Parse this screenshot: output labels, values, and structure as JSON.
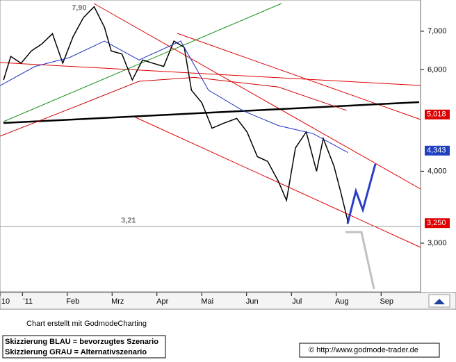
{
  "chart_data": {
    "type": "line",
    "log_scale": true,
    "xlim": [
      0.5,
      9.88
    ],
    "ylim": [
      2.47,
      7.93
    ],
    "xticks": [
      {
        "value": 0.5,
        "label": "10"
      },
      {
        "value": 1,
        "label": "'11"
      },
      {
        "value": 2,
        "label": "Feb"
      },
      {
        "value": 3,
        "label": "Mrz"
      },
      {
        "value": 4,
        "label": "Apr"
      },
      {
        "value": 5,
        "label": "Mai"
      },
      {
        "value": 6,
        "label": "Jun"
      },
      {
        "value": 7,
        "label": "Jul"
      },
      {
        "value": 8,
        "label": "Aug"
      },
      {
        "value": 9,
        "label": "Sep"
      }
    ],
    "yticks": [
      {
        "value": 7,
        "label": "7,000"
      },
      {
        "value": 6,
        "label": "6,000"
      },
      {
        "value": 4,
        "label": "4,000"
      },
      {
        "value": 3,
        "label": "3,000"
      }
    ],
    "series": [
      {
        "color": "#000000",
        "x": [
          0.58,
          0.74,
          0.97,
          1.2,
          1.43,
          1.67,
          1.9,
          2.13,
          2.36,
          2.6,
          2.83,
          2.98,
          3.22,
          3.45,
          3.68,
          3.91,
          4.15,
          4.38,
          4.61,
          4.77,
          5.0,
          5.23,
          5.47,
          5.78,
          6.01,
          6.24,
          6.47,
          6.71,
          6.89,
          7.09,
          7.33,
          7.56,
          7.71,
          7.95,
          8.1,
          8.26
        ],
        "values": [
          5.76,
          6.33,
          6.16,
          6.47,
          6.65,
          6.93,
          6.16,
          6.85,
          7.39,
          7.72,
          7.11,
          6.47,
          6.39,
          5.76,
          6.24,
          6.16,
          6.08,
          6.73,
          6.56,
          5.53,
          5.26,
          4.75,
          4.84,
          4.94,
          4.68,
          4.24,
          4.16,
          3.84,
          3.56,
          4.39,
          4.68,
          4.0,
          4.56,
          4.08,
          3.68,
          3.27
        ]
      },
      {
        "color": "#2030c0",
        "x": [
          0.5,
          1.28,
          2.05,
          2.83,
          3.6,
          4.53,
          5.15,
          5.93,
          6.71,
          7.48,
          8.26
        ],
        "values": [
          5.63,
          6.08,
          6.3,
          6.73,
          6.24,
          6.73,
          5.53,
          5.09,
          4.8,
          4.65,
          4.31
        ]
      },
      {
        "color": "#cc0000",
        "x": [
          0.5,
          2.05,
          3.6,
          4.84,
          6.71,
          8.23
        ],
        "values": [
          4.6,
          5.13,
          5.73,
          5.82,
          5.6,
          5.1
        ]
      }
    ],
    "price_labels": [
      {
        "value": 5.018,
        "label": "5,018",
        "color": "#e00000"
      },
      {
        "value": 4.343,
        "label": "4,343",
        "color": "#2040c0"
      },
      {
        "value": 3.25,
        "label": "3,250",
        "color": "#e00000"
      }
    ],
    "annotations": [
      {
        "value": 7.9,
        "label": "7,90",
        "x": 2.1
      },
      {
        "value": 3.21,
        "label": "3,21",
        "x": 3.2
      }
    ],
    "credit": "Chart erstellt mit GodmodeCharting",
    "notes": [
      "Skizzierung BLAU = bevorzugtes Szenario",
      "Skizzierung GRAU = Alternativszenario"
    ],
    "source": "© http://www.godmode-trader.de"
  }
}
